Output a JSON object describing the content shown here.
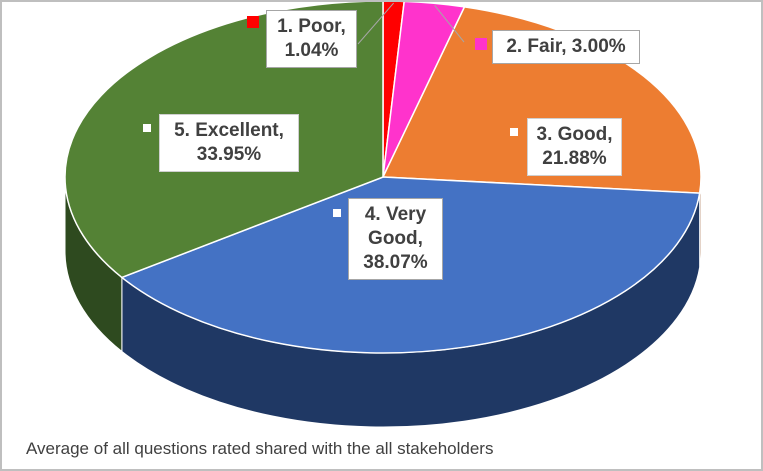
{
  "chart_data": {
    "type": "pie",
    "variant": "3d",
    "categories": [
      "1. Poor",
      "2. Fair",
      "3. Good",
      "4. Very Good",
      "5. Excellent"
    ],
    "values": [
      1.04,
      3.0,
      21.88,
      38.07,
      33.95
    ],
    "unit": "%",
    "colors": [
      "#ff0000",
      "#ff33cc",
      "#ed7d31",
      "#4472c4",
      "#548235"
    ],
    "side_colors": [
      "#990000",
      "#99207a",
      "#8e4b1d",
      "#1f3864",
      "#2e4a1f"
    ],
    "data_labels": [
      {
        "line1": "1. Poor,",
        "line2": "1.04%"
      },
      {
        "line1": "2. Fair, 3.00%"
      },
      {
        "line1": "3. Good,",
        "line2": "21.88%"
      },
      {
        "line1": "4. Very",
        "line2": "Good,",
        "line3": "38.07%"
      },
      {
        "line1": "5. Excellent,",
        "line2": "33.95%"
      }
    ],
    "footnote": "Average of all questions rated shared with the all stakeholders",
    "grid": false,
    "legend": "none"
  }
}
